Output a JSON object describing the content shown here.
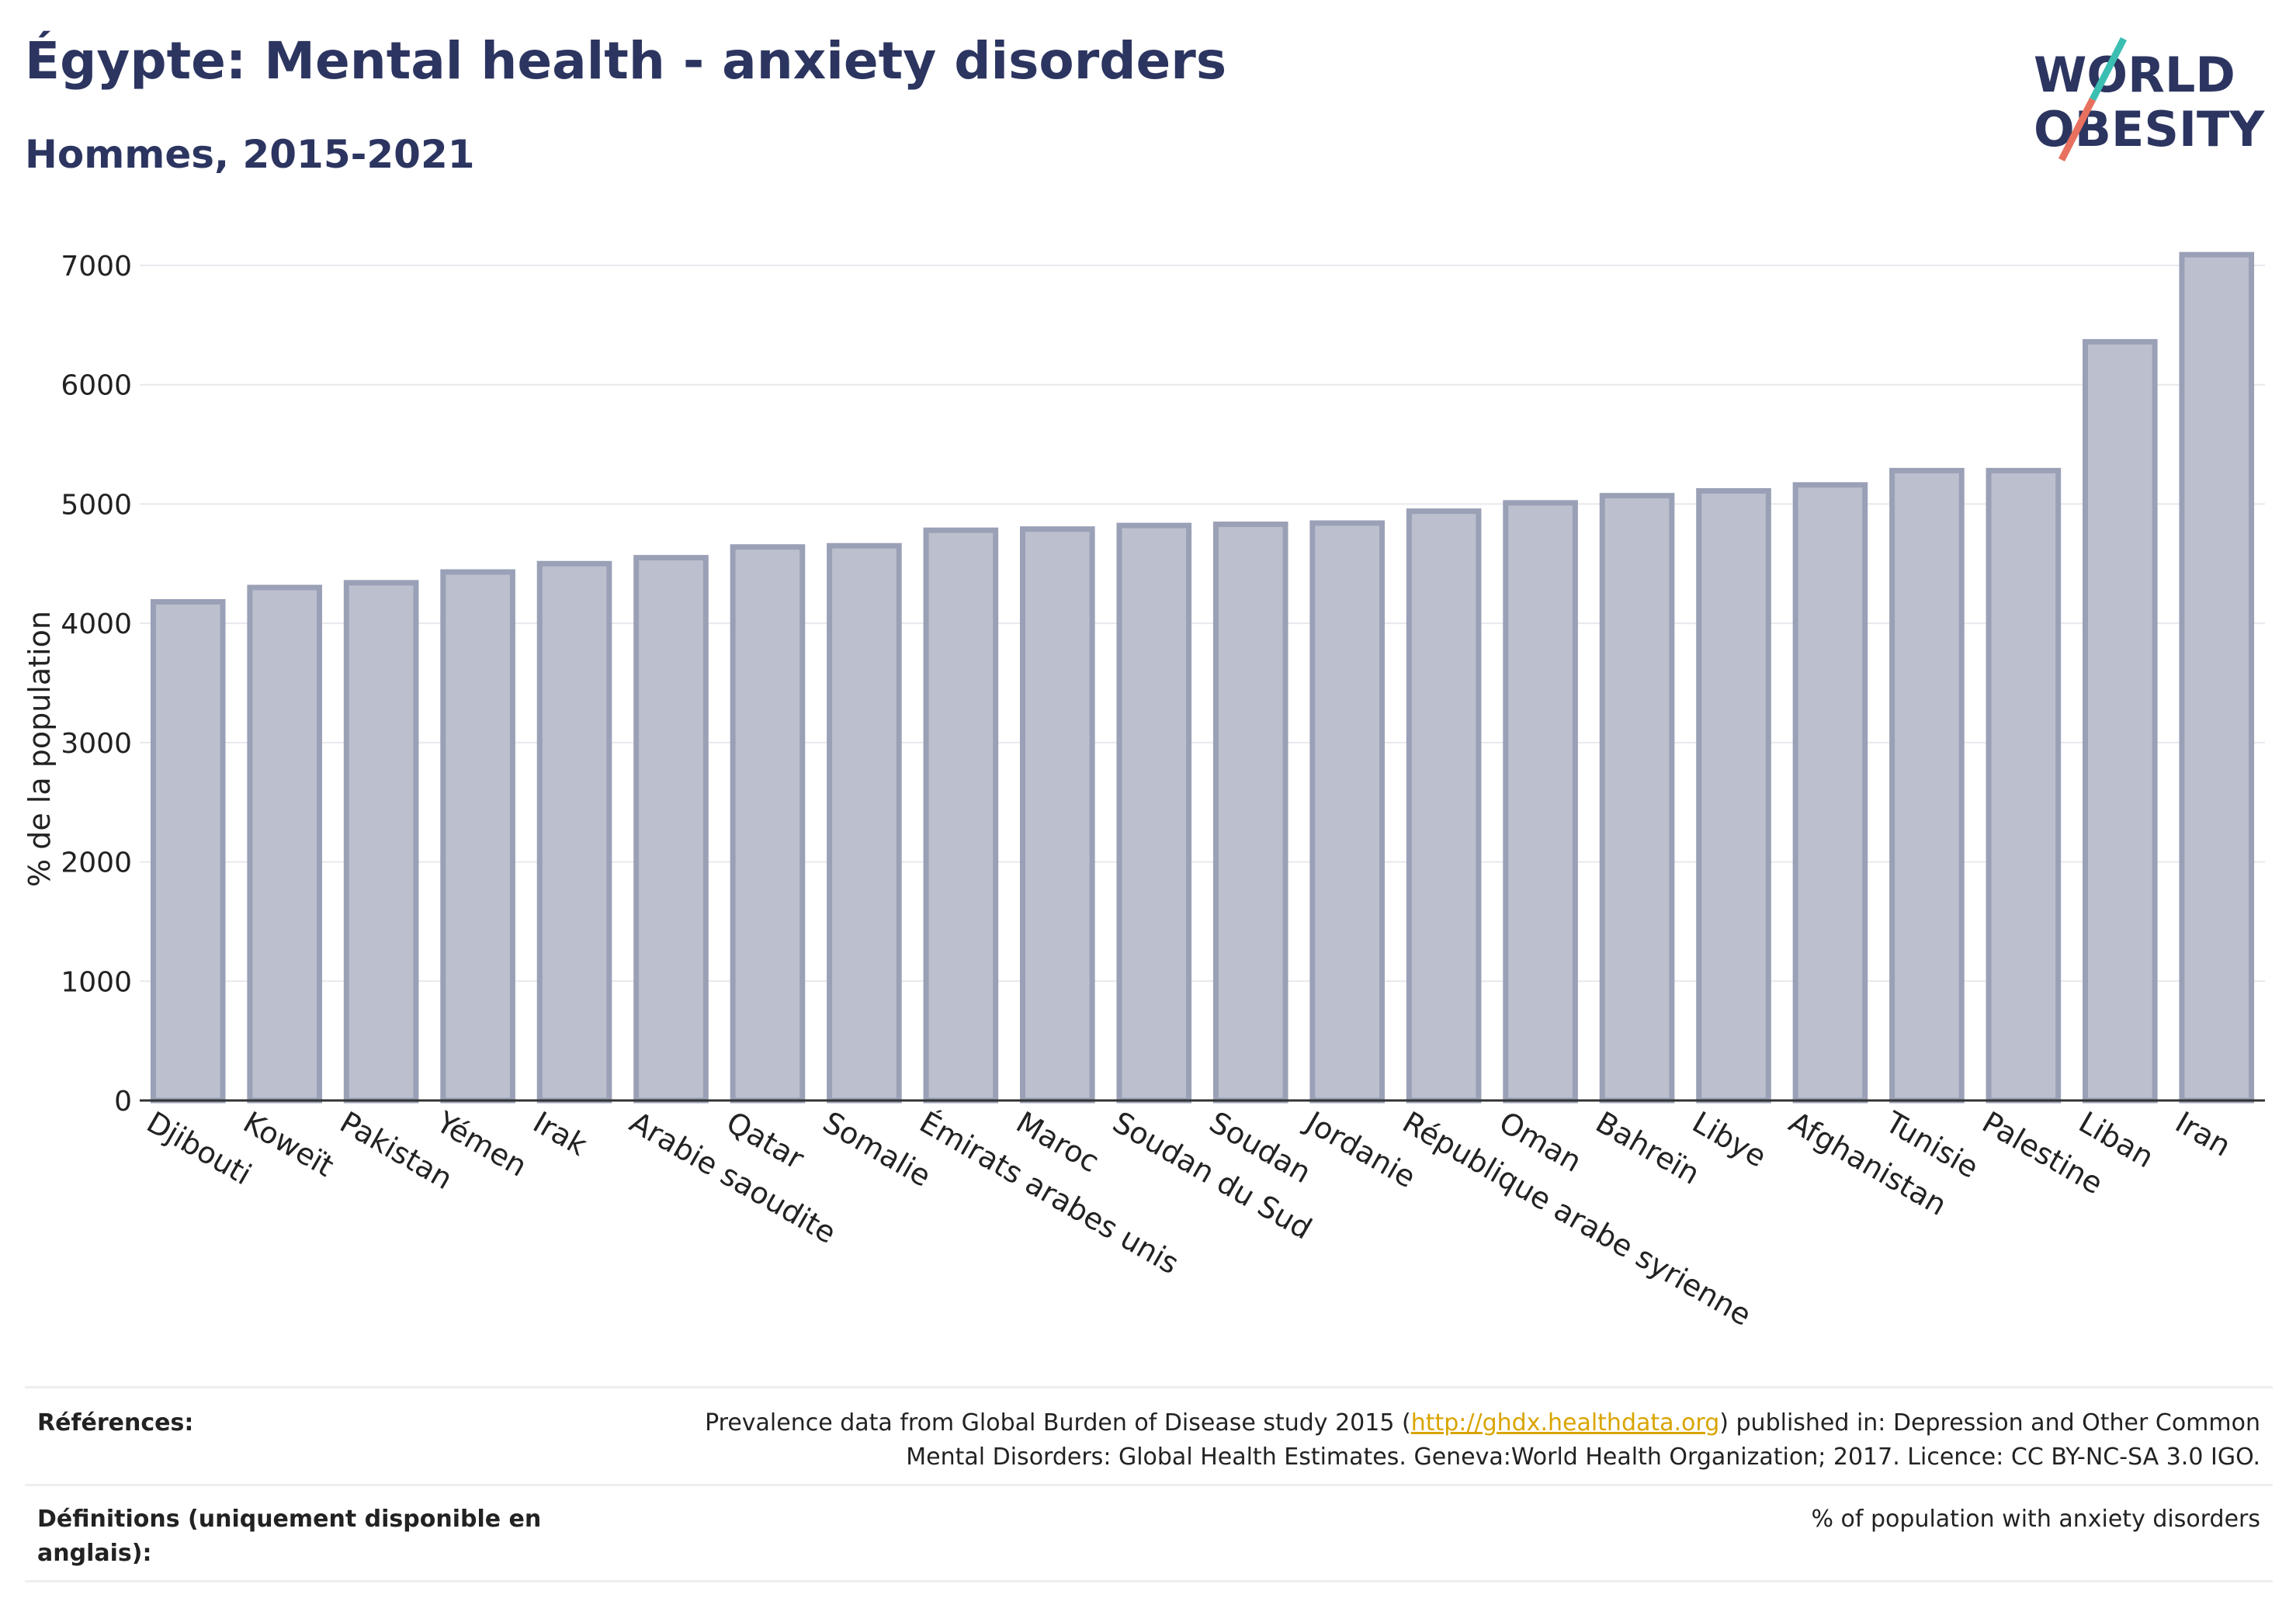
{
  "header": {
    "title": "Égypte: Mental health - anxiety disorders",
    "subtitle": "Hommes, 2015-2021"
  },
  "logo": {
    "line1": "WORLD",
    "line2": "OBESITY",
    "colors": {
      "text": "#2c3560",
      "teal": "#3bbfb3",
      "coral": "#e8705f"
    }
  },
  "chart_data": {
    "type": "bar",
    "ylabel": "% de la population",
    "ylim": [
      0,
      7000
    ],
    "yticks": [
      0,
      1000,
      2000,
      3000,
      4000,
      5000,
      6000,
      7000
    ],
    "grid": true,
    "categories": [
      "Djibouti",
      "Koweït",
      "Pakistan",
      "Yémen",
      "Irak",
      "Arabie saoudite",
      "Qatar",
      "Somalie",
      "Émirats arabes unis",
      "Maroc",
      "Soudan du Sud",
      "Soudan",
      "Jordanie",
      "République arabe syrienne",
      "Oman",
      "Bahreïn",
      "Libye",
      "Afghanistan",
      "Tunisie",
      "Palestine",
      "Liban",
      "Iran"
    ],
    "values": [
      4180,
      4300,
      4340,
      4430,
      4500,
      4550,
      4640,
      4650,
      4780,
      4790,
      4820,
      4830,
      4840,
      4940,
      5010,
      5070,
      5110,
      5160,
      5280,
      5280,
      6360,
      7090
    ],
    "colors": {
      "bar_fill": "#bcc0ce",
      "bar_stroke": "#9aa0b6"
    }
  },
  "footer": {
    "references_label": "Références:",
    "references_text_before": "Prevalence data from Global Burden of Disease study 2015 (",
    "references_link": "http://ghdx.healthdata.org",
    "references_text_after": ") published in: Depression and Other Common Mental Disorders: Global Health Estimates. Geneva:World Health Organization; 2017. Licence: CC BY-NC-SA 3.0 IGO.",
    "definitions_label": "Définitions (uniquement disponible en anglais):",
    "definitions_text": "% of population with anxiety disorders"
  }
}
